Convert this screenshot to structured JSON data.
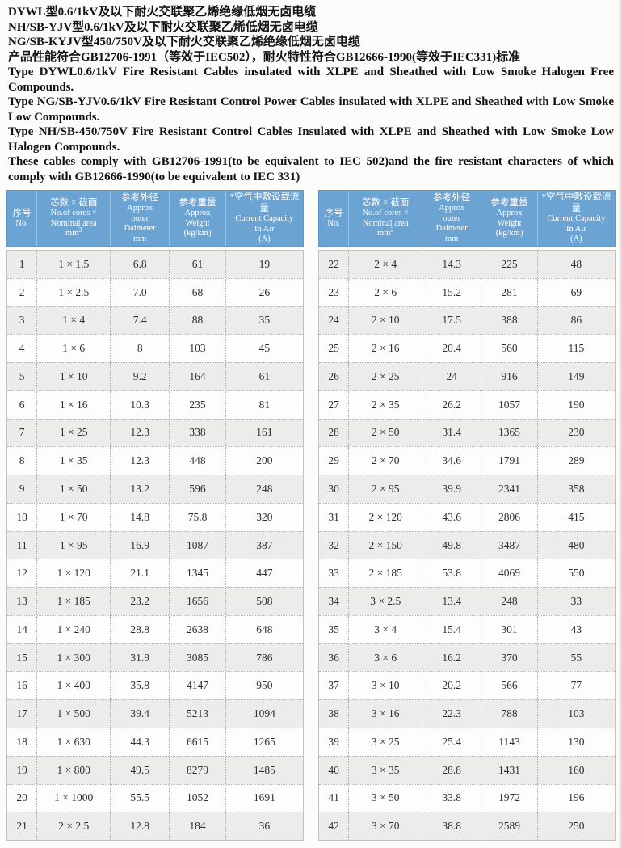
{
  "page": {
    "titles_cn": [
      "DYWL型0.6/1kV及以下耐火交联聚乙烯绝缘低烟无卤电缆",
      "NH/SB-YJV型0.6/1kV及以下耐火交联聚乙烯低烟无卤电缆",
      "NG/SB-KYJV型450/750V及以下耐火交联聚乙烯绝缘低烟无卤电缆",
      "产品性能符合GB12706-1991（等效于IEC502），耐火特性符合GB12666-1990(等效于IEC331)标准"
    ],
    "paragraphs_en": [
      "Type DYWL0.6/1kV Fire Resistant Cables insulated with XLPE and Sheathed with Low Smoke Halogen Free Compounds.",
      "Type NG/SB-YJV0.6/1kV Fire Resistant Control Power Cables insulated with XLPE and Sheathed with Low Smoke  Low Compounds.",
      "Type NH/SB-450/750V Fire Resistant Control Cables Insulated with XLPE and Sheathed with Low Smoke Low Halogen Compounds.",
      "These cables comply with GB12706-1991(to be equivalent to IEC 502)and the fire resistant characters of which comply with GB12666-1990(to be equivalent to IEC 331)"
    ]
  },
  "table": {
    "columns": [
      {
        "lines_cn": [
          "序号"
        ],
        "lines_en": [
          "No."
        ]
      },
      {
        "lines_cn": [
          "芯数 × 截面"
        ],
        "lines_en": [
          "No.of cores ×",
          "Nominal area"
        ],
        "unit_base": "mm",
        "unit_sup": "2"
      },
      {
        "lines_cn": [
          "参考外径"
        ],
        "lines_en": [
          "Approx",
          "outer",
          "Daimeter",
          "mm"
        ]
      },
      {
        "lines_cn": [
          "参考重量"
        ],
        "lines_en": [
          "Approx",
          "Weight",
          "(kg/km)"
        ]
      },
      {
        "lines_cn": [
          "*空气中敷设载流量"
        ],
        "lines_en": [
          "Current Capacity",
          "In Air",
          "(A)"
        ]
      }
    ],
    "left_rows": [
      [
        "1",
        "1 × 1.5",
        "6.8",
        "61",
        "19"
      ],
      [
        "2",
        "1 × 2.5",
        "7.0",
        "68",
        "26"
      ],
      [
        "3",
        "1 × 4",
        "7.4",
        "88",
        "35"
      ],
      [
        "4",
        "1 × 6",
        "8",
        "103",
        "45"
      ],
      [
        "5",
        "1 × 10",
        "9.2",
        "164",
        "61"
      ],
      [
        "6",
        "1 × 16",
        "10.3",
        "235",
        "81"
      ],
      [
        "7",
        "1 × 25",
        "12.3",
        "338",
        "161"
      ],
      [
        "8",
        "1 × 35",
        "12.3",
        "448",
        "200"
      ],
      [
        "9",
        "1 × 50",
        "13.2",
        "596",
        "248"
      ],
      [
        "10",
        "1 × 70",
        "14.8",
        "75.8",
        "320"
      ],
      [
        "11",
        "1 × 95",
        "16.9",
        "1087",
        "387"
      ],
      [
        "12",
        "1 × 120",
        "21.1",
        "1345",
        "447"
      ],
      [
        "13",
        "1 × 185",
        "23.2",
        "1656",
        "508"
      ],
      [
        "14",
        "1 × 240",
        "28.8",
        "2638",
        "648"
      ],
      [
        "15",
        "1 × 300",
        "31.9",
        "3085",
        "786"
      ],
      [
        "16",
        "1 × 400",
        "35.8",
        "4147",
        "950"
      ],
      [
        "17",
        "1 × 500",
        "39.4",
        "5213",
        "1094"
      ],
      [
        "18",
        "1 × 630",
        "44.3",
        "6615",
        "1265"
      ],
      [
        "19",
        "1 × 800",
        "49.5",
        "8279",
        "1485"
      ],
      [
        "20",
        "1 × 1000",
        "55.5",
        "1052",
        "1691"
      ],
      [
        "21",
        "2 × 2.5",
        "12.8",
        "184",
        "36"
      ]
    ],
    "right_rows": [
      [
        "22",
        "2 × 4",
        "14.3",
        "225",
        "48"
      ],
      [
        "23",
        "2 × 6",
        "15.2",
        "281",
        "69"
      ],
      [
        "24",
        "2 × 10",
        "17.5",
        "388",
        "86"
      ],
      [
        "25",
        "2 × 16",
        "20.4",
        "560",
        "115"
      ],
      [
        "26",
        "2 × 25",
        "24",
        "916",
        "149"
      ],
      [
        "27",
        "2 × 35",
        "26.2",
        "1057",
        "190"
      ],
      [
        "28",
        "2 × 50",
        "31.4",
        "1365",
        "230"
      ],
      [
        "29",
        "2 × 70",
        "34.6",
        "1791",
        "289"
      ],
      [
        "30",
        "2 × 95",
        "39.9",
        "2341",
        "358"
      ],
      [
        "31",
        "2 × 120",
        "43.6",
        "2806",
        "415"
      ],
      [
        "32",
        "2 × 150",
        "49.8",
        "3487",
        "480"
      ],
      [
        "33",
        "2 × 185",
        "53.8",
        "4069",
        "550"
      ],
      [
        "34",
        "3 × 2.5",
        "13.4",
        "248",
        "33"
      ],
      [
        "35",
        "3 × 4",
        "15.4",
        "301",
        "43"
      ],
      [
        "36",
        "3 × 6",
        "16.2",
        "370",
        "55"
      ],
      [
        "37",
        "3 × 10",
        "20.2",
        "566",
        "77"
      ],
      [
        "38",
        "3 × 16",
        "22.3",
        "788",
        "103"
      ],
      [
        "39",
        "3 × 25",
        "25.4",
        "1143",
        "130"
      ],
      [
        "40",
        "3 × 35",
        "28.8",
        "1431",
        "160"
      ],
      [
        "41",
        "3 × 50",
        "33.8",
        "1972",
        "196"
      ],
      [
        "42",
        "3 × 70",
        "38.8",
        "2589",
        "250"
      ]
    ]
  },
  "colors": {
    "header_blue": "#6ba3d2",
    "row_stripe": "#ececeb",
    "page_bg": "#fcfcfb"
  }
}
